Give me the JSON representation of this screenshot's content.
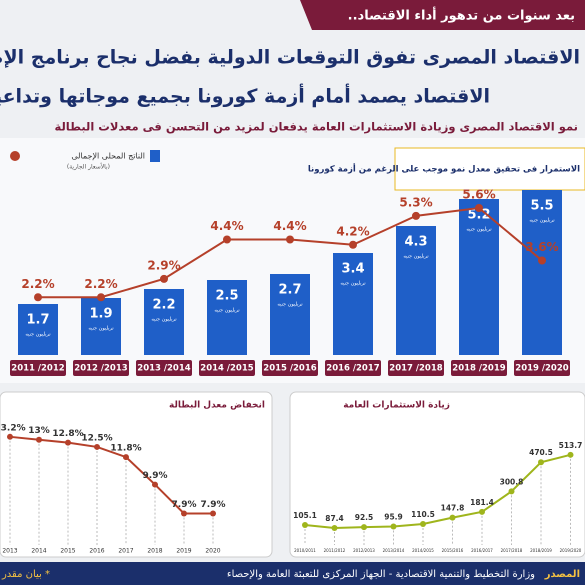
{
  "banner": "بعد سنوات من تدهور أداء الاقتصاد..",
  "title_lines": [
    "الاقتصاد المصرى تفوق التوقعات الدولية بفضل نجاح برنامج الإصلاح الاقتصادى",
    "الاقتصاد يصمد أمام أزمة كورونا بجميع موجاتها وتداعياتها"
  ],
  "subtitle": "نمو الاقتصاد المصرى وزيادة الاستثمارات العامة يدفعان لمزيد من التحسن فى معدلات البطالة",
  "footer": {
    "source_label": "المصدر",
    "source": "وزارة التخطيط والتنمية الاقتصادية - الجهاز المركزى للتعبئة العامة والإحصاء",
    "note": "* بيان مقدر"
  },
  "chart_data": [
    {
      "type": "bar",
      "annotation": "الاستمرار فى تحقيق معدل نمو موجب على الرغم من أزمة كورونا",
      "legend_note": "(بالأسعار الجارية)",
      "unit_label": "تريليون جنيه",
      "categories": [
        "2011 /2012",
        "2012 /2013",
        "2013 /2014",
        "2014 /2015",
        "2015 /2016",
        "2016 /2017",
        "2017 /2018",
        "2018 /2019",
        "2019 /2020"
      ],
      "ylim": [
        0,
        7
      ],
      "y2lim": [
        0,
        8
      ],
      "series": [
        {
          "name": "الناتج المحلى الإجمالى",
          "color": "#1f5fc8",
          "values": [
            1.7,
            1.9,
            2.2,
            2.5,
            2.7,
            3.4,
            4.3,
            5.2,
            5.5
          ]
        },
        {
          "color": "#b5402a",
          "axis": "y2",
          "values": [
            2.2,
            2.2,
            2.9,
            4.4,
            4.4,
            4.2,
            5.3,
            5.6,
            3.6
          ],
          "value_labels": [
            "2.2%",
            "2.2%",
            "2.9%",
            "4.4%",
            "4.4%",
            "4.2%",
            "5.3%",
            "5.6%",
            "3.6%"
          ]
        }
      ]
    },
    {
      "type": "line",
      "title": "انخفاض معدل البطالة",
      "categories": [
        "2013",
        "2014",
        "2015",
        "2016",
        "2017",
        "2018",
        "2019",
        "2020"
      ],
      "ylim": [
        6,
        14.5
      ],
      "series": [
        {
          "color": "#b5402a",
          "values": [
            13.2,
            13,
            12.8,
            12.5,
            11.8,
            9.9,
            7.9,
            7.9
          ],
          "value_labels": [
            "13.2%",
            "13%",
            "12.8%",
            "12.5%",
            "11.8%",
            "9.9%",
            "7.9%",
            "7.9%"
          ]
        }
      ]
    },
    {
      "type": "line",
      "title": "زيادة الاستثمارات العامة",
      "categories": [
        "2010/2011",
        "2011/2012",
        "2012/2013",
        "2013/2014",
        "2014/2015",
        "2015/2016",
        "2016/2017",
        "2017/2018",
        "2018/2019",
        "2019/2020"
      ],
      "ylim": [
        0,
        600
      ],
      "series": [
        {
          "color": "#9fb51c",
          "values": [
            105.1,
            87.4,
            92.5,
            95.9,
            110.5,
            147.8,
            181.4,
            300.8,
            470.5,
            513.7
          ]
        }
      ]
    }
  ]
}
